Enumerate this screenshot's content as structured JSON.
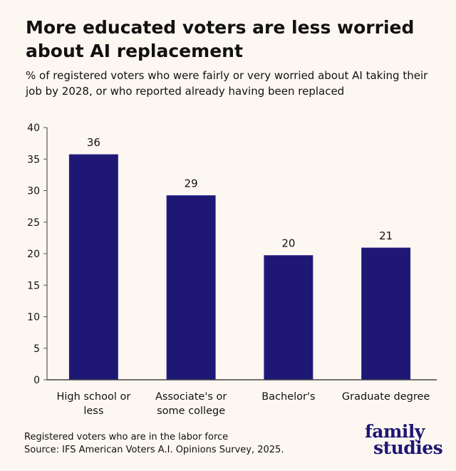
{
  "title": "More educated voters are less worried about AI replacement",
  "subtitle": "% of registered voters who were fairly or very worried about AI taking their job  by 2028, or who reported already having been replaced",
  "footnote": {
    "line1": "Registered voters who are in the labor force",
    "line2": "Source: IFS American Voters A.I. Opinions Survey, 2025."
  },
  "logo": {
    "line1": "family",
    "line2": "studies"
  },
  "colors": {
    "bar": "#1e1774",
    "background": "#fdf7f2",
    "axis": "#555555"
  },
  "chart_data": {
    "type": "bar",
    "categories": [
      [
        "High school or",
        "less"
      ],
      [
        "Associate's or",
        "some college"
      ],
      [
        "Bachelor's"
      ],
      [
        "Graduate degree"
      ]
    ],
    "values": [
      35.7,
      29.2,
      19.7,
      20.9
    ],
    "data_labels": [
      "36",
      "29",
      "20",
      "21"
    ],
    "ylim": [
      0,
      40
    ],
    "yticks": [
      0,
      5,
      10,
      15,
      20,
      25,
      30,
      35,
      40
    ],
    "grid": false,
    "xlabel": "",
    "ylabel": ""
  }
}
